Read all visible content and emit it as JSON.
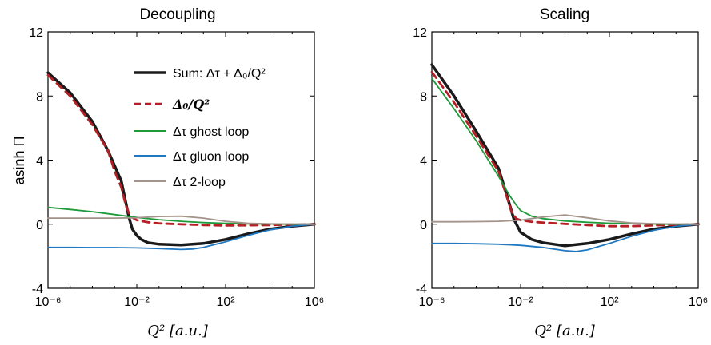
{
  "chart_data": [
    {
      "type": "line",
      "title": "Decoupling",
      "xlabel": "Q² [a.u.]",
      "ylabel": "asinh Π",
      "xscale": "log",
      "xlim": [
        1e-06,
        1000000.0
      ],
      "ylim": [
        -4,
        12
      ],
      "xticks": [
        "10⁻⁶",
        "10⁻²",
        "10²",
        "10⁶"
      ],
      "yticks": [
        "-4",
        "0",
        "4",
        "8",
        "12"
      ],
      "legend_placement": "top-right",
      "grid": false,
      "series": [
        {
          "key": "sum",
          "name": "Sum: Δτ + Δ₀/Q²",
          "color": "#1a1a1a",
          "dash": "solid",
          "x": [
            -6,
            -5,
            -4,
            -3.3,
            -2.7,
            -2.35,
            -2.2,
            -2,
            -1.8,
            -1.5,
            -1,
            0,
            1,
            2,
            3,
            4,
            5,
            6
          ],
          "y": [
            9.45,
            8.2,
            6.4,
            4.6,
            2.7,
            0.4,
            -0.3,
            -0.7,
            -0.95,
            -1.15,
            -1.25,
            -1.3,
            -1.2,
            -0.95,
            -0.6,
            -0.3,
            -0.12,
            0
          ]
        },
        {
          "key": "delta0",
          "name": "Δ₀/Q²",
          "color": "#b52026",
          "dash": "dashed",
          "x": [
            -6,
            -5,
            -4,
            -3.3,
            -3,
            -2.7,
            -2.5,
            -2.3,
            -2,
            -1.5,
            -1,
            0,
            1,
            2,
            3,
            4,
            5,
            6
          ],
          "y": [
            9.3,
            8.0,
            6.2,
            4.6,
            3.3,
            2.3,
            1.2,
            0.5,
            0.25,
            0.12,
            0.05,
            0,
            -0.05,
            -0.08,
            -0.07,
            -0.05,
            -0.02,
            0
          ]
        },
        {
          "key": "ghost",
          "name": "Δτ ghost loop",
          "color": "#1f9a3a",
          "dash": "solid",
          "x": [
            -6,
            -5,
            -4,
            -3,
            -2,
            -1,
            0,
            1,
            2,
            3,
            4,
            5,
            6
          ],
          "y": [
            1.05,
            0.92,
            0.78,
            0.6,
            0.42,
            0.28,
            0.18,
            0.1,
            0.05,
            0.02,
            0.01,
            0.0,
            0
          ]
        },
        {
          "key": "gluon",
          "name": "Δτ gluon loop",
          "color": "#1f78c1",
          "dash": "solid",
          "x": [
            -6,
            -5,
            -4,
            -3,
            -2,
            -1,
            0,
            0.5,
            1,
            2,
            3,
            4,
            5,
            6
          ],
          "y": [
            -1.45,
            -1.45,
            -1.46,
            -1.46,
            -1.48,
            -1.52,
            -1.58,
            -1.55,
            -1.45,
            -1.1,
            -0.7,
            -0.35,
            -0.12,
            0
          ]
        },
        {
          "key": "twoloop",
          "name": "Δτ 2-loop",
          "color": "#a3938a",
          "dash": "solid",
          "x": [
            -6,
            -5,
            -4,
            -3,
            -2,
            -1,
            0,
            1,
            2,
            3,
            4,
            5,
            6
          ],
          "y": [
            0.38,
            0.38,
            0.38,
            0.38,
            0.4,
            0.48,
            0.5,
            0.38,
            0.18,
            0.06,
            0.02,
            0.01,
            0
          ]
        }
      ]
    },
    {
      "type": "line",
      "title": "Scaling",
      "xlabel": "Q² [a.u.]",
      "ylabel": "",
      "xscale": "log",
      "xlim": [
        1e-06,
        1000000.0
      ],
      "ylim": [
        -4,
        12
      ],
      "xticks": [
        "10⁻⁶",
        "10⁻²",
        "10²",
        "10⁶"
      ],
      "yticks": [
        "-4",
        "0",
        "4",
        "8",
        "12"
      ],
      "grid": false,
      "series": [
        {
          "key": "sum",
          "color": "#1a1a1a",
          "dash": "solid",
          "x": [
            -6,
            -5,
            -4,
            -3,
            -2.6,
            -2.3,
            -2,
            -1.5,
            -1,
            0,
            1,
            2,
            3,
            4,
            5,
            6
          ],
          "y": [
            9.95,
            8.0,
            5.8,
            3.5,
            1.7,
            0.3,
            -0.5,
            -0.95,
            -1.15,
            -1.35,
            -1.2,
            -0.95,
            -0.6,
            -0.3,
            -0.12,
            0
          ]
        },
        {
          "key": "delta0",
          "color": "#b52026",
          "dash": "dashed",
          "x": [
            -6,
            -5,
            -4,
            -3,
            -2.6,
            -2.4,
            -2.2,
            -2,
            -1.5,
            -1,
            0,
            1,
            2,
            3,
            4,
            5,
            6
          ],
          "y": [
            9.5,
            7.6,
            5.5,
            3.3,
            1.6,
            0.75,
            0.35,
            0.25,
            0.15,
            0.1,
            0.02,
            -0.05,
            -0.12,
            -0.12,
            -0.07,
            -0.03,
            0
          ]
        },
        {
          "key": "ghost",
          "color": "#1f9a3a",
          "dash": "solid",
          "x": [
            -6,
            -5,
            -4,
            -3,
            -2.5,
            -2.2,
            -2,
            -1.5,
            -1,
            0,
            1,
            2,
            3,
            4,
            5,
            6
          ],
          "y": [
            9.1,
            7.2,
            5.2,
            3.0,
            1.8,
            1.2,
            0.85,
            0.5,
            0.35,
            0.2,
            0.12,
            0.06,
            0.03,
            0.01,
            0.0,
            0
          ]
        },
        {
          "key": "gluon",
          "color": "#1f78c1",
          "dash": "solid",
          "x": [
            -6,
            -5,
            -4,
            -3,
            -2,
            -1,
            0,
            0.5,
            1,
            2,
            3,
            4,
            5,
            6
          ],
          "y": [
            -1.2,
            -1.2,
            -1.22,
            -1.25,
            -1.32,
            -1.45,
            -1.65,
            -1.7,
            -1.6,
            -1.2,
            -0.75,
            -0.38,
            -0.13,
            0
          ]
        },
        {
          "key": "twoloop",
          "color": "#a3938a",
          "dash": "solid",
          "x": [
            -6,
            -5,
            -4,
            -3,
            -2,
            -1,
            0,
            1,
            2,
            3,
            4,
            5,
            6
          ],
          "y": [
            0.15,
            0.15,
            0.16,
            0.18,
            0.25,
            0.45,
            0.58,
            0.4,
            0.2,
            0.08,
            0.03,
            0.01,
            0
          ]
        }
      ]
    }
  ]
}
